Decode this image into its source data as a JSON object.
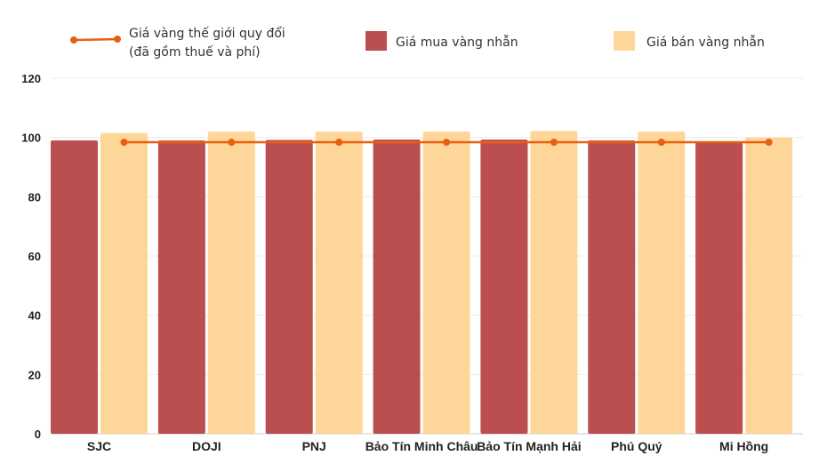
{
  "chart_data": {
    "type": "bar",
    "categories": [
      "SJC",
      "DOJI",
      "PNJ",
      "Bảo Tín Minh Châu",
      "Bảo Tín Mạnh Hải",
      "Phú Quý",
      "Mi Hồng"
    ],
    "series": [
      {
        "name": "Giá mua vàng nhẫn",
        "kind": "bar",
        "color": "#bb4e4e",
        "values": [
          99.0,
          99.0,
          99.2,
          99.3,
          99.3,
          99.0,
          98.5
        ]
      },
      {
        "name": "Giá bán vàng nhẫn",
        "kind": "bar",
        "color": "#ffd699",
        "values": [
          101.5,
          102.0,
          102.0,
          102.0,
          102.2,
          102.0,
          100.0
        ]
      },
      {
        "name": "Giá vàng thế giới quy đổi",
        "name_line2": "(đã gồm thuế và phí)",
        "kind": "line",
        "color": "#e8600f",
        "values": [
          98.4,
          98.4,
          98.4,
          98.4,
          98.4,
          98.4,
          98.4
        ]
      }
    ],
    "ylim": [
      0,
      120
    ],
    "yticks": [
      "0",
      "20",
      "40",
      "60",
      "80",
      "100",
      "120"
    ],
    "xlabel": "",
    "ylabel": "",
    "grid": true,
    "legend_position": "top"
  }
}
